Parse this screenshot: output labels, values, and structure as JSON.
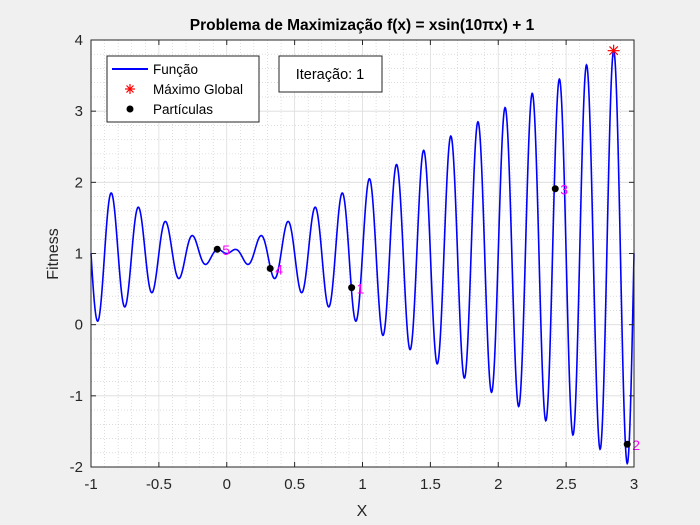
{
  "chart_data": {
    "type": "line",
    "title": "Problema de Maximização f(x) = xsin(10πx) + 1",
    "xlabel": "X",
    "ylabel": "Fitness",
    "xlim": [
      -1,
      3
    ],
    "ylim": [
      -2,
      4
    ],
    "xticks": [
      "-1",
      "-0.5",
      "0",
      "0.5",
      "1",
      "1.5",
      "2",
      "2.5",
      "3"
    ],
    "yticks": [
      "-2",
      "-1",
      "0",
      "1",
      "2",
      "3",
      "4"
    ],
    "grid": true,
    "minor_grid": true,
    "legend_position": "top-left",
    "function": {
      "name": "Função",
      "expression": "x*sin(10*pi*x)+1",
      "samples": 1600,
      "color": "#0000ff"
    },
    "global_max": {
      "name": "Máximo Global",
      "x": 2.85,
      "y": 3.85,
      "color": "#ff0000",
      "marker": "asterisk"
    },
    "particles": {
      "name": "Partículas",
      "color": "#000000",
      "label_color": "#ff00ff",
      "points": [
        {
          "label": "1",
          "x": 0.92,
          "y": 0.52
        },
        {
          "label": "2",
          "x": 2.95,
          "y": -1.68
        },
        {
          "label": "3",
          "x": 2.42,
          "y": 1.91
        },
        {
          "label": "4",
          "x": 0.32,
          "y": 0.79
        },
        {
          "label": "5",
          "x": -0.07,
          "y": 1.06
        }
      ]
    },
    "annotation": "Iteração: 1"
  }
}
